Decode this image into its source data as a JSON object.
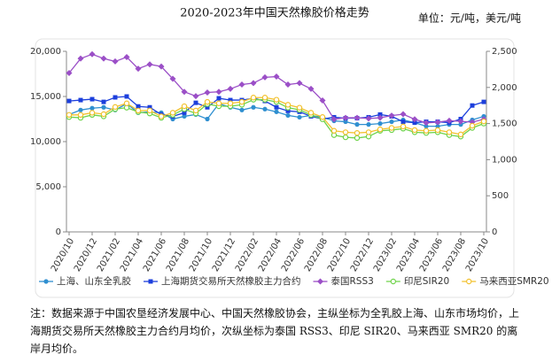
{
  "chart_data": {
    "type": "line",
    "title": "2020-2023年中国天然橡胶价格走势",
    "unit_label": "单位：元/吨，美元/吨",
    "categories": [
      "2020/10",
      null,
      "2020/12",
      null,
      "2021/02",
      null,
      "2021/04",
      null,
      "2021/06",
      null,
      "2021/08",
      null,
      "2021/10",
      null,
      "2021/12",
      null,
      "2022/02",
      null,
      "2022/04",
      null,
      "2022/06",
      null,
      "2022/08",
      null,
      "2022/10",
      null,
      "2022/12",
      null,
      "2023/02",
      null,
      "2023/04",
      null,
      "2023/06",
      null,
      "2023/08",
      null,
      "2023/10"
    ],
    "series": [
      {
        "name": "上海、山东全乳胶",
        "color": "#2f8fd0",
        "marker": "circle",
        "values": [
          13000,
          13500,
          13700,
          13800,
          13500,
          14200,
          13200,
          13300,
          13200,
          12500,
          12800,
          13000,
          12500,
          14200,
          13800,
          13500,
          13800,
          13600,
          13300,
          12900,
          12700,
          12900,
          12700,
          12300,
          12200,
          11900,
          11900,
          12000,
          12200,
          12400,
          12100,
          11700,
          11700,
          11900,
          11900,
          12400,
          12800
        ]
      },
      {
        "name": "上海期货交易所天然橡胶主力合约",
        "color": "#1c3fdc",
        "marker": "square",
        "values": [
          14500,
          14600,
          14700,
          14400,
          14900,
          15000,
          13900,
          13800,
          13000,
          12800,
          13200,
          14300,
          13800,
          14800,
          14600,
          14600,
          14800,
          14500,
          13800,
          13400,
          13300,
          12800,
          12500,
          12700,
          12600,
          12600,
          12700,
          13000,
          12800,
          12200,
          12100,
          12200,
          12200,
          12100,
          12500,
          14000,
          14400
        ]
      },
      {
        "name": "泰国RSS3",
        "color": "#9b4fc7",
        "marker": "diamond",
        "axis": "y2",
        "values": [
          2200,
          2400,
          2460,
          2400,
          2360,
          2420,
          2260,
          2320,
          2290,
          2120,
          1940,
          1880,
          1930,
          1940,
          1980,
          2040,
          2060,
          2140,
          2150,
          2040,
          2060,
          1980,
          1820,
          1560,
          1580,
          1580,
          1570,
          1580,
          1610,
          1630,
          1560,
          1510,
          1520,
          1540,
          1530,
          1520,
          1560
        ]
      },
      {
        "name": "印尼SIR20",
        "color": "#6fd34a",
        "marker": "hollow",
        "axis": "y2",
        "values": [
          1590,
          1580,
          1620,
          1600,
          1700,
          1720,
          1660,
          1640,
          1580,
          1620,
          1700,
          1640,
          1770,
          1740,
          1740,
          1760,
          1830,
          1830,
          1800,
          1720,
          1690,
          1620,
          1560,
          1340,
          1310,
          1300,
          1320,
          1400,
          1410,
          1430,
          1380,
          1370,
          1380,
          1340,
          1320,
          1440,
          1500
        ]
      },
      {
        "name": "马来西亚SMR20",
        "color": "#f2c12e",
        "marker": "hollow",
        "axis": "y2",
        "values": [
          1620,
          1620,
          1650,
          1630,
          1730,
          1780,
          1680,
          1680,
          1600,
          1650,
          1740,
          1680,
          1800,
          1780,
          1780,
          1800,
          1860,
          1860,
          1830,
          1760,
          1720,
          1650,
          1590,
          1400,
          1380,
          1370,
          1380,
          1420,
          1440,
          1460,
          1410,
          1400,
          1410,
          1380,
          1350,
          1470,
          1530
        ]
      }
    ],
    "ylim": [
      0,
      20000
    ],
    "yticks": [
      0,
      {
        "value": 5000,
        "label": "5,000"
      },
      {
        "value": 10000,
        "label": "10,000"
      },
      {
        "value": 15000,
        "label": "15,000"
      },
      {
        "value": 20000,
        "label": "20,000"
      }
    ],
    "y2lim": [
      0,
      2500
    ],
    "y2ticks": [
      0,
      500,
      {
        "value": 1000,
        "label": "1,000"
      },
      {
        "value": 1500,
        "label": "1,500"
      },
      {
        "value": 2000,
        "label": "2,000"
      },
      {
        "value": 2500,
        "label": "2,500"
      }
    ],
    "grid": false,
    "legend": "bottom",
    "note": "注：数据来源于中国农垦经济发展中心、中国天然橡胶协会，主纵坐标为全乳胶上海、山东市场均价，上海期货交易所天然橡胶主力合约月均价，次纵坐标为泰国 RSS3、印尼 SIR20、马来西亚 SMR20 的离岸月均价。"
  }
}
